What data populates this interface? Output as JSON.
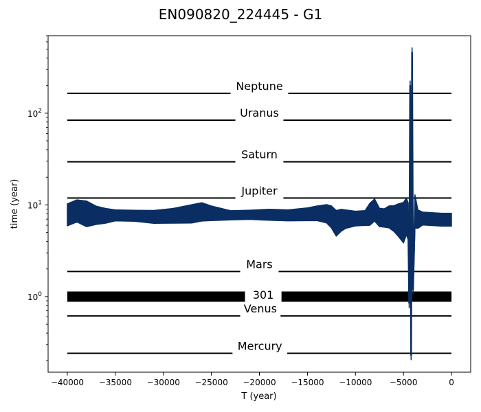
{
  "chart_data": {
    "type": "line",
    "title": "EN090820_224445 - G1",
    "xlabel": "T (year)",
    "ylabel": "time (year)",
    "xlim": [
      -42000,
      2000
    ],
    "ylim": [
      0.15,
      700
    ],
    "yscale": "log",
    "x_ticks": [
      -40000,
      -35000,
      -30000,
      -25000,
      -20000,
      -15000,
      -10000,
      -5000,
      0
    ],
    "x_tick_labels": [
      "−40000",
      "−35000",
      "−30000",
      "−25000",
      "−20000",
      "−15000",
      "−10000",
      "−5000",
      "0"
    ],
    "y_ticks": [
      1,
      10,
      100
    ],
    "y_tick_labels": [
      {
        "base": "10",
        "exp": "0"
      },
      {
        "base": "10",
        "exp": "1"
      },
      {
        "base": "10",
        "exp": "2"
      }
    ],
    "grid": false,
    "reference_lines": [
      {
        "label": "Neptune",
        "y": 165,
        "x_start": -40000,
        "x_end": 0,
        "gap": [
          -23000,
          -17000
        ]
      },
      {
        "label": "Uranus",
        "y": 84,
        "x_start": -40000,
        "x_end": 0,
        "gap": [
          -22500,
          -17500
        ]
      },
      {
        "label": "Saturn",
        "y": 29.5,
        "x_start": -40000,
        "x_end": 0,
        "gap": [
          -22500,
          -17500
        ]
      },
      {
        "label": "Jupiter",
        "y": 11.9,
        "x_start": -40000,
        "x_end": 0,
        "gap": [
          -22500,
          -17500
        ]
      },
      {
        "label": "Mars",
        "y": 1.88,
        "x_start": -40000,
        "x_end": 0,
        "gap": [
          -22000,
          -18000
        ]
      },
      {
        "label": "301",
        "y": 1.0,
        "x_start": -40000,
        "x_end": 0,
        "gap": [
          -21500,
          -17700
        ],
        "thick": true
      },
      {
        "label": "Venus",
        "y": 0.615,
        "x_start": -40000,
        "x_end": 0,
        "gap": [
          -22000,
          -17800
        ]
      },
      {
        "label": "Mercury",
        "y": 0.241,
        "x_start": -40000,
        "x_end": 0,
        "gap": [
          -22800,
          -17100
        ]
      }
    ],
    "series": [
      {
        "color": "#0a2e63",
        "x": [
          -40000,
          -39000,
          -38000,
          -37000,
          -36000,
          -35000,
          -33000,
          -31000,
          -29000,
          -27000,
          -26000,
          -25000,
          -23000,
          -21000,
          -19000,
          -17000,
          -15000,
          -14000,
          -13000,
          -12500,
          -12000,
          -11500,
          -11000,
          -10000,
          -9000,
          -8500,
          -8000,
          -7500,
          -7000,
          -6500,
          -6000,
          -5500,
          -5000,
          -4700,
          -4500,
          -4400,
          -4300,
          -4200,
          -4100,
          -4000,
          -3800,
          -3500,
          -3000,
          -2000,
          -1000,
          0
        ],
        "y": [
          7.8,
          8.6,
          8.0,
          7.7,
          7.6,
          7.7,
          7.6,
          7.4,
          7.6,
          8.0,
          8.4,
          8.1,
          7.7,
          7.8,
          7.8,
          7.7,
          7.9,
          8.1,
          8.0,
          7.4,
          6.3,
          6.8,
          7.0,
          7.1,
          7.2,
          7.9,
          8.8,
          7.3,
          7.2,
          7.4,
          7.1,
          6.8,
          6.4,
          7.5,
          6.6,
          0.85,
          200,
          0.23,
          460,
          1.2,
          8.5,
          7.0,
          7.1,
          7.0,
          6.9,
          6.9
        ],
        "band": [
          0.12,
          0.12,
          0.14,
          0.1,
          0.08,
          0.06,
          0.06,
          0.07,
          0.08,
          0.1,
          0.1,
          0.08,
          0.05,
          0.05,
          0.06,
          0.06,
          0.07,
          0.08,
          0.1,
          0.12,
          0.14,
          0.12,
          0.1,
          0.08,
          0.08,
          0.12,
          0.12,
          0.1,
          0.1,
          0.12,
          0.14,
          0.18,
          0.22,
          0.2,
          0.2,
          0.05,
          0.05,
          0.05,
          0.05,
          0.05,
          0.18,
          0.1,
          0.07,
          0.07,
          0.07,
          0.07
        ]
      }
    ]
  }
}
